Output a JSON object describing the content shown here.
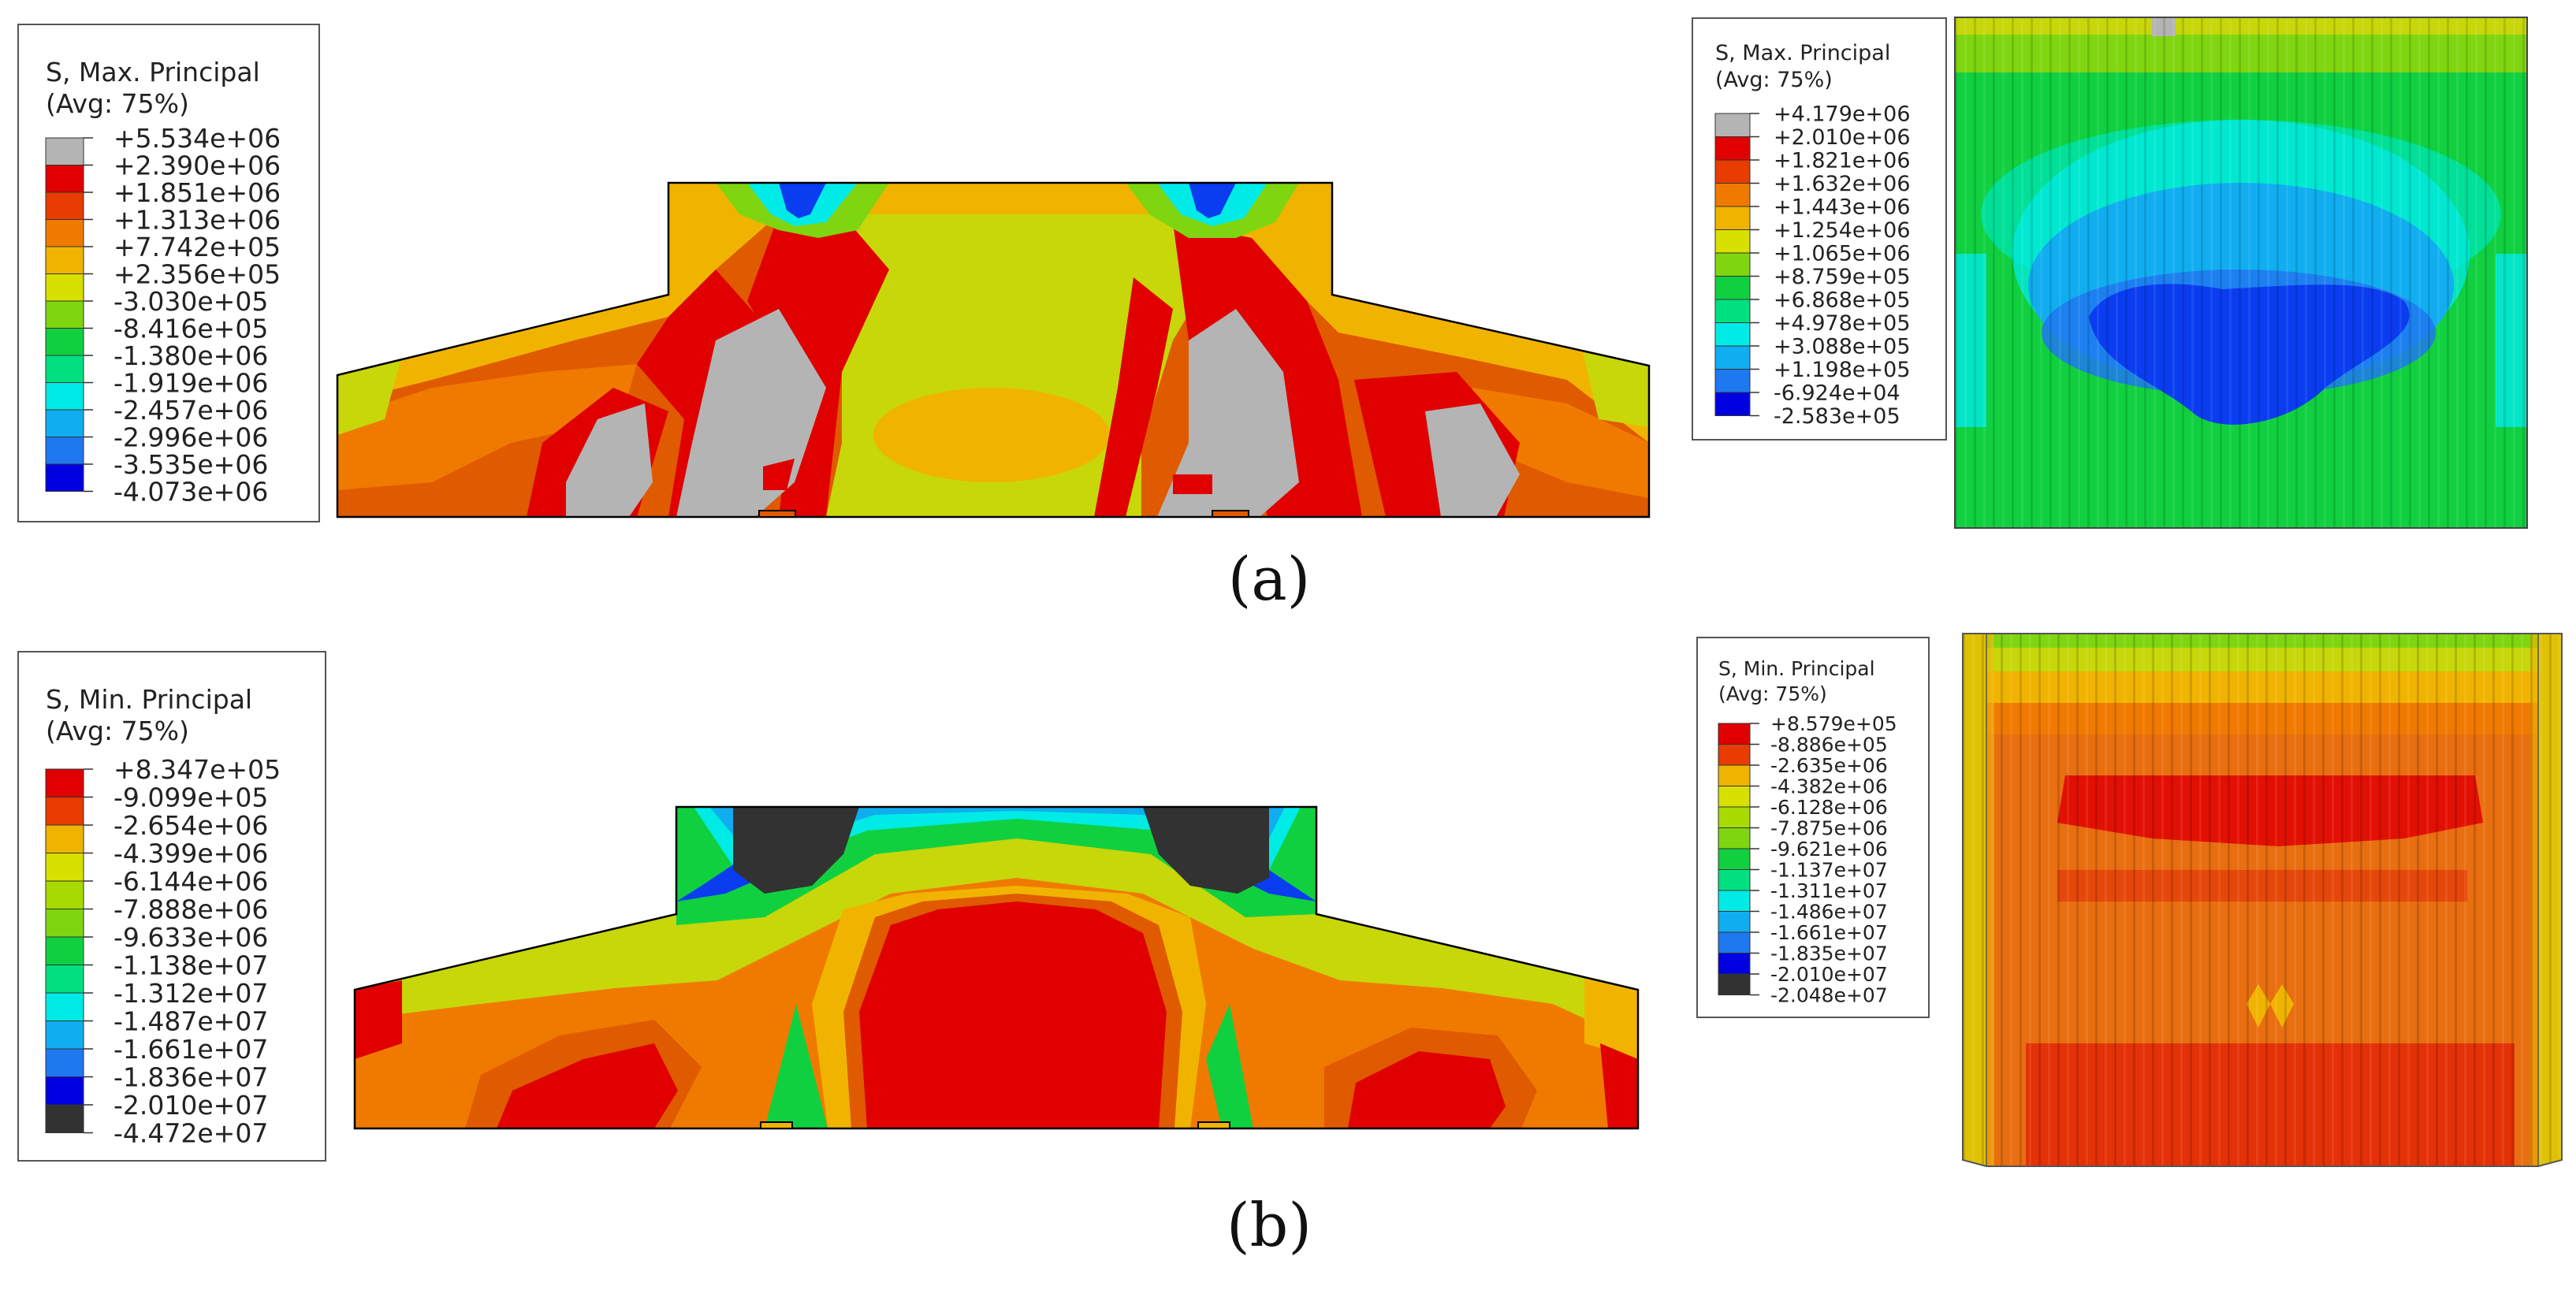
{
  "colors": {
    "blue_dark": "#0000e0",
    "blue": "#0a3cf0",
    "blue_mid": "#1e78f0",
    "cyan_blue": "#10aef0",
    "cyan": "#00ebe6",
    "green_cyan": "#00e096",
    "green": "#10d040",
    "green_yellow": "#7fd610",
    "yellow_green": "#c7d70a",
    "yellow_orange": "#f0b400",
    "orange": "#f07a00",
    "orange_red": "#e05a00",
    "red": "#e00000",
    "grey": "#b4b4b4",
    "dark_grey": "#323232",
    "orange_face": "#e86e10"
  },
  "panel_a": {
    "caption": "(a)",
    "legend_left": {
      "title": "S, Max. Principal",
      "avg": "(Avg: 75%)",
      "values": [
        "+5.534e+06",
        "+2.390e+06",
        "+1.851e+06",
        "+1.313e+06",
        "+7.742e+05",
        "+2.356e+05",
        "-3.030e+05",
        "-8.416e+05",
        "-1.380e+06",
        "-1.919e+06",
        "-2.457e+06",
        "-2.996e+06",
        "-3.535e+06",
        "-4.073e+06"
      ],
      "swatch_colors": [
        "#b4b4b4",
        "#e00000",
        "#e83c00",
        "#f07a00",
        "#f0b400",
        "#d8e000",
        "#7fd610",
        "#10d040",
        "#00e080",
        "#00ebe6",
        "#10aef0",
        "#1e78f0",
        "#0000e0"
      ]
    },
    "legend_right": {
      "title": "S, Max. Principal",
      "avg": "(Avg: 75%)",
      "values": [
        "+4.179e+06",
        "+2.010e+06",
        "+1.821e+06",
        "+1.632e+06",
        "+1.443e+06",
        "+1.254e+06",
        "+1.065e+06",
        "+8.759e+05",
        "+6.868e+05",
        "+4.978e+05",
        "+3.088e+05",
        "+1.198e+05",
        "-6.924e+04",
        "-2.583e+05"
      ],
      "swatch_colors": [
        "#b4b4b4",
        "#e00000",
        "#e83c00",
        "#f07a00",
        "#f0b400",
        "#d8e000",
        "#7fd610",
        "#10d040",
        "#00e080",
        "#00ebe6",
        "#10aef0",
        "#1e78f0",
        "#0000e0"
      ]
    }
  },
  "panel_b": {
    "caption": "(b)",
    "legend_left": {
      "title": "S, Min. Principal",
      "avg": "(Avg: 75%)",
      "values": [
        "+8.347e+05",
        "-9.099e+05",
        "-2.654e+06",
        "-4.399e+06",
        "-6.144e+06",
        "-7.888e+06",
        "-9.633e+06",
        "-1.138e+07",
        "-1.312e+07",
        "-1.487e+07",
        "-1.661e+07",
        "-1.836e+07",
        "-2.010e+07",
        "-4.472e+07"
      ],
      "swatch_colors": [
        "#e00000",
        "#e83c00",
        "#f0b400",
        "#d8e000",
        "#a8da00",
        "#7fd610",
        "#10d040",
        "#00e080",
        "#00ebe6",
        "#10aef0",
        "#1e78f0",
        "#0000e0",
        "#323232"
      ]
    },
    "legend_right": {
      "title": "S, Min. Principal",
      "avg": "(Avg: 75%)",
      "values": [
        "+8.579e+05",
        "-8.886e+05",
        "-2.635e+06",
        "-4.382e+06",
        "-6.128e+06",
        "-7.875e+06",
        "-9.621e+06",
        "-1.137e+07",
        "-1.311e+07",
        "-1.486e+07",
        "-1.661e+07",
        "-1.835e+07",
        "-2.010e+07",
        "-2.048e+07"
      ],
      "swatch_colors": [
        "#e00000",
        "#e83c00",
        "#f0b400",
        "#d8e000",
        "#a8da00",
        "#7fd610",
        "#10d040",
        "#00e080",
        "#00ebe6",
        "#10aef0",
        "#1e78f0",
        "#0000e0",
        "#323232"
      ]
    }
  }
}
